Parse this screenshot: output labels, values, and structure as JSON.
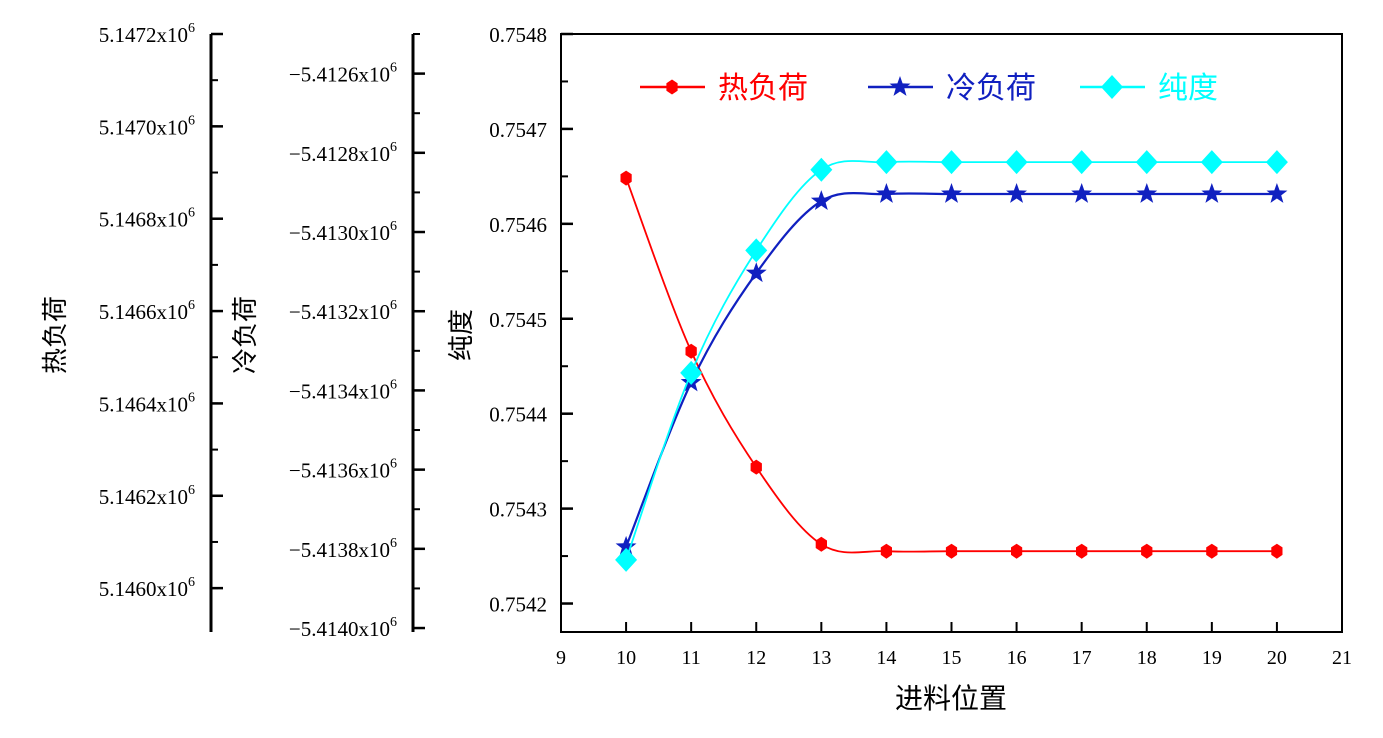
{
  "chart_data": {
    "type": "line",
    "x_axis": {
      "label": "进料位置",
      "range": [
        9,
        21
      ],
      "ticks": [
        9,
        10,
        11,
        12,
        13,
        14,
        15,
        16,
        17,
        18,
        19,
        20,
        21
      ]
    },
    "x": [
      10,
      11,
      12,
      13,
      14,
      15,
      16,
      17,
      18,
      19,
      20
    ],
    "y_axes": [
      {
        "id": "heat",
        "label": "热负荷",
        "unit_exponent": "6",
        "range": [
          5.145905,
          5.1472
        ],
        "ticks": [
          5.1472,
          5.147,
          5.1468,
          5.1466,
          5.1464,
          5.1462,
          5.146
        ],
        "tick_labels": [
          "5.1472x10",
          "5.1470x10",
          "5.1468x10",
          "5.1466x10",
          "5.1464x10",
          "5.1462x10",
          "5.1460x10"
        ]
      },
      {
        "id": "cold",
        "label": "冷负荷",
        "unit_exponent": "6",
        "range": [
          -5.41401,
          -5.4125
        ],
        "ticks": [
          -5.4126,
          -5.4128,
          -5.413,
          -5.4132,
          -5.4134,
          -5.4136,
          -5.4138,
          -5.414
        ],
        "tick_labels": [
          "−5.4126x10",
          "−5.4128x10",
          "−5.4130x10",
          "−5.4132x10",
          "−5.4134x10",
          "−5.4136x10",
          "−5.4138x10",
          "−5.4140x10"
        ]
      },
      {
        "id": "purity",
        "label": "纯度",
        "range": [
          0.75417,
          0.7548
        ],
        "ticks": [
          0.7548,
          0.7547,
          0.7546,
          0.7545,
          0.7544,
          0.7543,
          0.7542
        ],
        "tick_labels": [
          "0.7548",
          "0.7547",
          "0.7546",
          "0.7545",
          "0.7544",
          "0.7543",
          "0.7542"
        ]
      }
    ],
    "series": [
      {
        "name": "热负荷",
        "axis": "heat",
        "color": "#ff0000",
        "marker": "hexagon",
        "values": [
          5.146888,
          5.146513,
          5.146262,
          5.146095,
          5.14608,
          5.14608,
          5.14608,
          5.14608,
          5.14608,
          5.14608,
          5.14608
        ]
      },
      {
        "name": "冷负荷",
        "axis": "cold",
        "color": "#1020c0",
        "marker": "star",
        "values": [
          -5.413795,
          -5.41338,
          -5.413104,
          -5.412922,
          -5.412904,
          -5.412904,
          -5.412904,
          -5.412904,
          -5.412904,
          -5.412904,
          -5.412904
        ]
      },
      {
        "name": "纯度",
        "axis": "purity",
        "color": "#00ffff",
        "marker": "diamond",
        "values": [
          0.754246,
          0.754443,
          0.754572,
          0.754657,
          0.754665,
          0.754665,
          0.754665,
          0.754665,
          0.754665,
          0.754665,
          0.754665
        ]
      }
    ],
    "legend": {
      "placement": "top"
    },
    "grid": false
  }
}
